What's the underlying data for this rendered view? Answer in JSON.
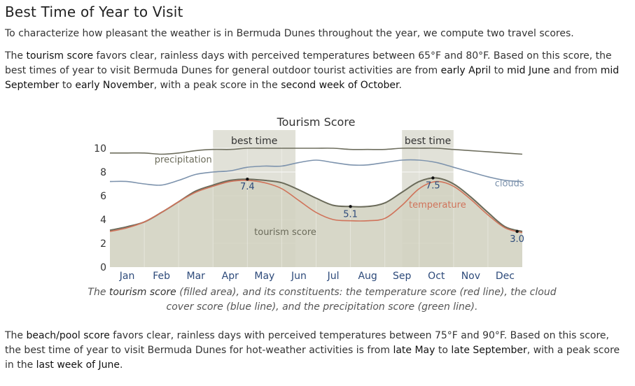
{
  "page": {
    "title": "Best Time of Year to Visit",
    "intro": "To characterize how pleasant the weather is in Bermuda Dunes throughout the year, we compute two travel scores.",
    "tourism_paragraph": [
      {
        "t": "The ",
        "hl": false
      },
      {
        "t": "tourism score",
        "hl": true
      },
      {
        "t": " favors clear, rainless days with perceived temperatures between 65°F and 80°F. Based on this score, the best times of year to visit Bermuda Dunes for general outdoor tourist activities are from ",
        "hl": false
      },
      {
        "t": "early April",
        "hl": true
      },
      {
        "t": " to ",
        "hl": false
      },
      {
        "t": "mid June",
        "hl": true
      },
      {
        "t": " and from ",
        "hl": false
      },
      {
        "t": "mid September",
        "hl": true
      },
      {
        "t": " to ",
        "hl": false
      },
      {
        "t": "early November",
        "hl": true
      },
      {
        "t": ", with a peak score in the ",
        "hl": false
      },
      {
        "t": "second week of October",
        "hl": true
      },
      {
        "t": ".",
        "hl": false
      }
    ],
    "caption": [
      {
        "t": "The ",
        "hl": false
      },
      {
        "t": "tourism score",
        "hl": true
      },
      {
        "t": " (filled area), and its constituents: the temperature score (red line), the cloud cover score (blue line), and the precipitation score (green line).",
        "hl": false
      }
    ],
    "beach_paragraph": [
      {
        "t": "The ",
        "hl": false
      },
      {
        "t": "beach/pool score",
        "hl": true
      },
      {
        "t": " favors clear, rainless days with perceived temperatures between 75°F and 90°F. Based on this score, the best time of year to visit Bermuda Dunes for hot-weather activities is from ",
        "hl": false
      },
      {
        "t": "late May",
        "hl": true
      },
      {
        "t": " to ",
        "hl": false
      },
      {
        "t": "late September",
        "hl": true
      },
      {
        "t": ", with a peak score in the ",
        "hl": false
      },
      {
        "t": "last week of June",
        "hl": true
      },
      {
        "t": ".",
        "hl": false
      }
    ]
  },
  "colors": {
    "tourism_fill": "#d3d3c2",
    "tourism_line": "#6b6b5a",
    "temperature": "#d0735a",
    "clouds": "#7d93ad",
    "precipitation": "#6e6e5e",
    "best_band": "#c9c9b8",
    "tick_label": "#2d4a7a",
    "axis_text": "#333333"
  },
  "chart_data": {
    "type": "area",
    "title": "Tourism Score",
    "x_unit": "month",
    "xlim": [
      0,
      12
    ],
    "ylim": [
      0,
      10
    ],
    "yticks": [
      0,
      2,
      4,
      6,
      8,
      10
    ],
    "month_labels": [
      "Jan",
      "Feb",
      "Mar",
      "Apr",
      "May",
      "Jun",
      "Jul",
      "Aug",
      "Sep",
      "Oct",
      "Nov",
      "Dec"
    ],
    "best_time": [
      {
        "label": "best time",
        "start": 3.0,
        "end": 5.4
      },
      {
        "label": "best time",
        "start": 8.5,
        "end": 10.0
      }
    ],
    "series": [
      {
        "name": "tourism score",
        "role": "area",
        "x": [
          0,
          0.5,
          1,
          1.5,
          2,
          2.5,
          3,
          3.5,
          4,
          4.5,
          5,
          5.5,
          6,
          6.5,
          7,
          7.5,
          8,
          8.5,
          9,
          9.5,
          10,
          10.5,
          11,
          11.5,
          12
        ],
        "values": [
          3.1,
          3.4,
          3.8,
          4.6,
          5.5,
          6.4,
          6.9,
          7.3,
          7.4,
          7.3,
          7.1,
          6.5,
          5.8,
          5.2,
          5.1,
          5.1,
          5.4,
          6.3,
          7.2,
          7.5,
          7.0,
          5.9,
          4.6,
          3.4,
          3.0
        ]
      },
      {
        "name": "temperature",
        "role": "line",
        "x": [
          0,
          0.5,
          1,
          1.5,
          2,
          2.5,
          3,
          3.5,
          4,
          4.5,
          5,
          5.5,
          6,
          6.5,
          7,
          7.5,
          8,
          8.5,
          9,
          9.5,
          10,
          10.5,
          11,
          11.5,
          12
        ],
        "values": [
          3.0,
          3.3,
          3.8,
          4.6,
          5.5,
          6.3,
          6.8,
          7.2,
          7.3,
          7.1,
          6.6,
          5.6,
          4.6,
          4.0,
          3.9,
          3.9,
          4.1,
          5.2,
          6.6,
          7.2,
          6.8,
          5.7,
          4.4,
          3.3,
          2.9
        ]
      },
      {
        "name": "clouds",
        "role": "line",
        "x": [
          0,
          0.5,
          1,
          1.5,
          2,
          2.5,
          3,
          3.5,
          4,
          4.5,
          5,
          5.5,
          6,
          6.5,
          7,
          7.5,
          8,
          8.5,
          9,
          9.5,
          10,
          10.5,
          11,
          11.5,
          12
        ],
        "values": [
          7.2,
          7.2,
          7.0,
          6.9,
          7.3,
          7.8,
          8.0,
          8.1,
          8.4,
          8.5,
          8.5,
          8.8,
          9.0,
          8.8,
          8.6,
          8.6,
          8.8,
          9.0,
          9.0,
          8.8,
          8.4,
          8.0,
          7.6,
          7.3,
          7.2
        ]
      },
      {
        "name": "precipitation",
        "role": "line",
        "x": [
          0,
          0.5,
          1,
          1.5,
          2,
          2.5,
          3,
          3.5,
          4,
          4.5,
          5,
          5.5,
          6,
          6.5,
          7,
          7.5,
          8,
          8.5,
          9,
          9.5,
          10,
          10.5,
          11,
          11.5,
          12
        ],
        "values": [
          9.6,
          9.6,
          9.6,
          9.5,
          9.6,
          9.8,
          9.9,
          9.9,
          10.0,
          10.0,
          10.0,
          10.0,
          10.0,
          10.0,
          9.9,
          9.9,
          9.9,
          10.0,
          10.0,
          10.0,
          9.9,
          9.8,
          9.7,
          9.6,
          9.5
        ]
      }
    ],
    "annotations": [
      {
        "label": "7.4",
        "x": 4.0,
        "y": 7.4,
        "dot": true
      },
      {
        "label": "5.1",
        "x": 7.0,
        "y": 5.1,
        "dot": true
      },
      {
        "label": "7.5",
        "x": 9.4,
        "y": 7.5,
        "dot": true
      },
      {
        "label": "3.0",
        "x": 11.85,
        "y": 3.0,
        "dot": true
      }
    ],
    "series_labels": [
      {
        "text": "precipitation",
        "x": 1.3,
        "y": 8.8
      },
      {
        "text": "clouds",
        "x": 11.2,
        "y": 6.8
      },
      {
        "text": "temperature",
        "x": 8.7,
        "y": 5.0
      },
      {
        "text": "tourism score",
        "x": 4.2,
        "y": 2.7
      }
    ],
    "grid": true
  }
}
